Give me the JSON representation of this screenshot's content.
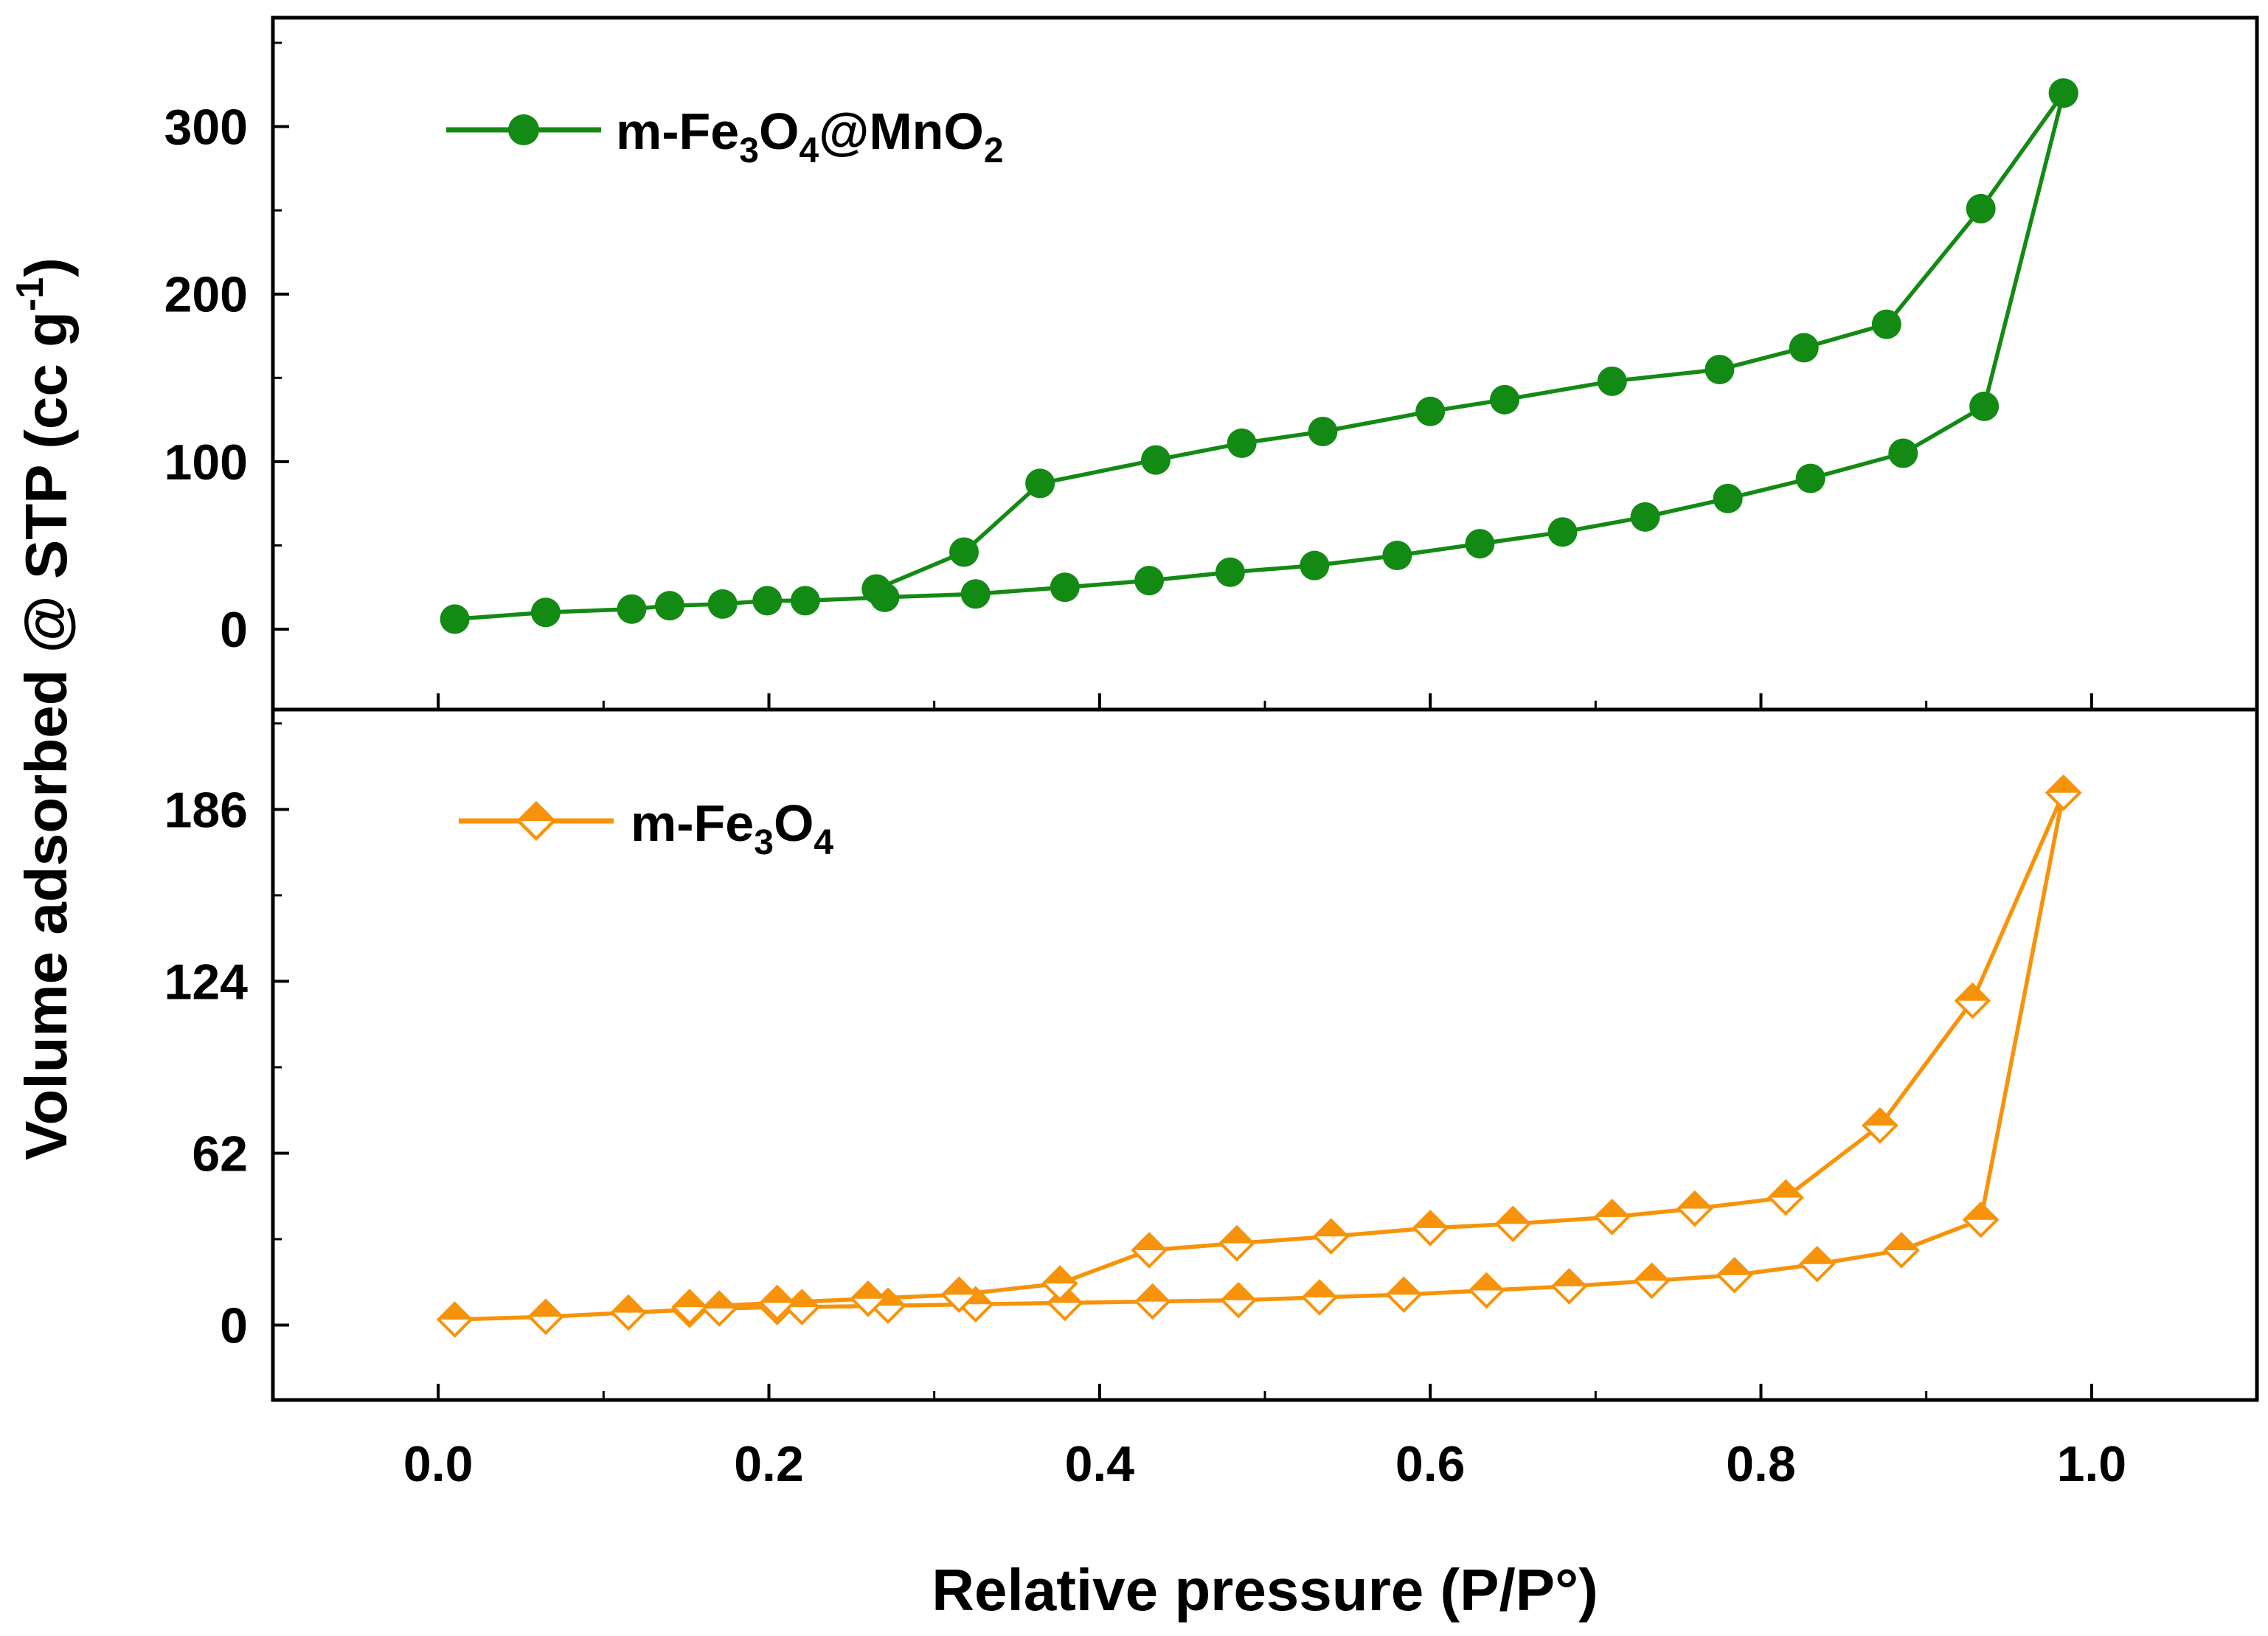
{
  "chart_data": [
    {
      "type": "line",
      "panel": "top",
      "color": "#138a13",
      "marker": "circle",
      "legend": {
        "label": "m-Fe3O4@MnO2",
        "text_prefix": "m-Fe",
        "sub1": "3",
        "text_mid": "O",
        "sub2": "4",
        "text_mid2": "@MnO",
        "sub3": "2",
        "placement": "top-left"
      },
      "xlim": [
        -0.1,
        1.1
      ],
      "ylim": [
        -48,
        365
      ],
      "yticks": [
        0,
        100,
        200,
        300
      ],
      "ytick_labels": [
        "0",
        "100",
        "200",
        "300"
      ],
      "series": [
        {
          "name": "adsorption",
          "x": [
            0.01,
            0.065,
            0.117,
            0.14,
            0.172,
            0.199,
            0.222,
            0.27,
            0.325,
            0.379,
            0.43,
            0.479,
            0.53,
            0.58,
            0.63,
            0.68,
            0.73,
            0.78,
            0.83,
            0.886,
            0.935,
            0.983
          ],
          "y": [
            6,
            10,
            12,
            14,
            15,
            17,
            17,
            19,
            21,
            25,
            29,
            34,
            38,
            44,
            51,
            58,
            67,
            78,
            90,
            105,
            133,
            320
          ]
        },
        {
          "name": "desorption",
          "x": [
            0.983,
            0.933,
            0.876,
            0.826,
            0.775,
            0.71,
            0.645,
            0.6,
            0.535,
            0.486,
            0.434,
            0.364,
            0.318,
            0.265
          ],
          "y": [
            320,
            251,
            182,
            168,
            155,
            148,
            137,
            130,
            118,
            111,
            101,
            87,
            46,
            24
          ]
        }
      ]
    },
    {
      "type": "line",
      "panel": "bottom",
      "color": "#f7930a",
      "marker": "diamond",
      "legend": {
        "label": "m-Fe3O4",
        "text_prefix": "m-Fe",
        "sub1": "3",
        "text_mid": "O",
        "sub2": "4",
        "placement": "top-left"
      },
      "xlim": [
        -0.1,
        1.1
      ],
      "ylim": [
        -27,
        222
      ],
      "yticks": [
        0,
        62,
        124,
        186
      ],
      "ytick_labels": [
        "0",
        "62",
        "124",
        "186"
      ],
      "series": [
        {
          "name": "adsorption",
          "x": [
            0.01,
            0.065,
            0.115,
            0.152,
            0.17,
            0.205,
            0.22,
            0.272,
            0.325,
            0.379,
            0.432,
            0.484,
            0.533,
            0.584,
            0.634,
            0.684,
            0.734,
            0.784,
            0.834,
            0.885,
            0.933,
            0.983
          ],
          "y": [
            2,
            3,
            4.5,
            5.5,
            6,
            6.5,
            6.5,
            7,
            7.5,
            8,
            8.5,
            9,
            10,
            11,
            12.5,
            14,
            16,
            18,
            22,
            27,
            38,
            192
          ]
        },
        {
          "name": "desorption",
          "x": [
            0.983,
            0.928,
            0.872,
            0.815,
            0.76,
            0.71,
            0.65,
            0.6,
            0.54,
            0.483,
            0.43,
            0.376,
            0.315,
            0.26,
            0.205,
            0.152
          ],
          "y": [
            192,
            117,
            72,
            46,
            42,
            39,
            36.5,
            35,
            32,
            29.5,
            27,
            15,
            11,
            9.5,
            8,
            6.5
          ]
        }
      ]
    }
  ],
  "xaxis": {
    "label": "Relative pressure (P/P°)",
    "ticks": [
      0.0,
      0.2,
      0.4,
      0.6,
      0.8,
      1.0
    ],
    "tick_labels": [
      "0.0",
      "0.2",
      "0.4",
      "0.6",
      "0.8",
      "1.0"
    ]
  },
  "yaxis": {
    "label_main": "Volume adsorbed @ STP (cc g",
    "label_sup": "-1",
    "label_close": ")"
  }
}
